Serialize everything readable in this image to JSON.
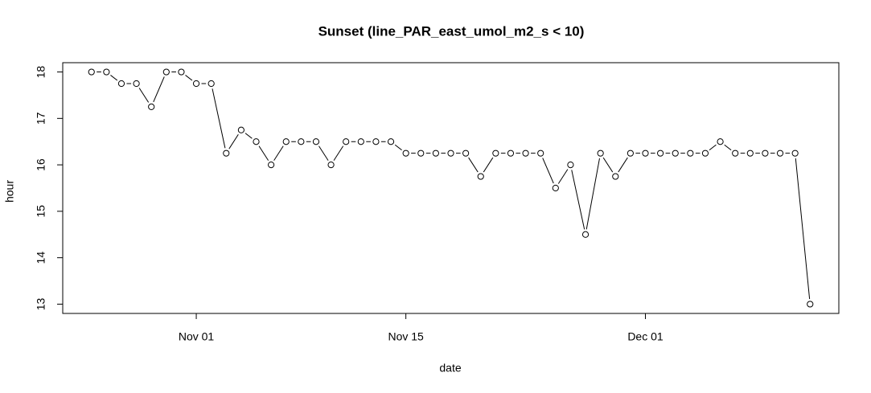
{
  "chart_data": {
    "type": "line",
    "title": "Sunset (line_PAR_east_umol_m2_s < 10)",
    "x_label": "date",
    "y_label": "hour",
    "x": [
      "Oct 25",
      "Oct 26",
      "Oct 27",
      "Oct 28",
      "Oct 29",
      "Oct 30",
      "Oct 31",
      "Nov 01",
      "Nov 02",
      "Nov 03",
      "Nov 04",
      "Nov 05",
      "Nov 06",
      "Nov 07",
      "Nov 08",
      "Nov 09",
      "Nov 10",
      "Nov 11",
      "Nov 12",
      "Nov 13",
      "Nov 14",
      "Nov 15",
      "Nov 16",
      "Nov 17",
      "Nov 18",
      "Nov 19",
      "Nov 20",
      "Nov 21",
      "Nov 22",
      "Nov 23",
      "Nov 24",
      "Nov 25",
      "Nov 26",
      "Nov 27",
      "Nov 28",
      "Nov 29",
      "Nov 30",
      "Dec 01",
      "Dec 02",
      "Dec 03",
      "Dec 04",
      "Dec 05",
      "Dec 06",
      "Dec 07",
      "Dec 08",
      "Dec 09",
      "Dec 10",
      "Dec 11",
      "Dec 12"
    ],
    "series": [
      {
        "name": "hour",
        "color": "#000000",
        "values": [
          18,
          18,
          17.75,
          17.75,
          17.25,
          18,
          18,
          17.75,
          17.75,
          16.25,
          16.75,
          16.5,
          16,
          16.5,
          16.5,
          16.5,
          16,
          16.5,
          16.5,
          16.5,
          16.5,
          16.25,
          16.25,
          16.25,
          16.25,
          16.25,
          15.75,
          16.25,
          16.25,
          16.25,
          16.25,
          15.5,
          16,
          14.5,
          16.25,
          15.75,
          16.25,
          16.25,
          16.25,
          16.25,
          16.25,
          16.25,
          16.5,
          16.25,
          16.25,
          16.25,
          16.25,
          16.25,
          13
        ]
      }
    ],
    "xticks": [
      "Nov 01",
      "Nov 15",
      "Dec 01"
    ],
    "ylim": [
      12.8,
      18.2
    ],
    "yticks": [
      13,
      14,
      15,
      16,
      17,
      18
    ],
    "grid": false
  }
}
